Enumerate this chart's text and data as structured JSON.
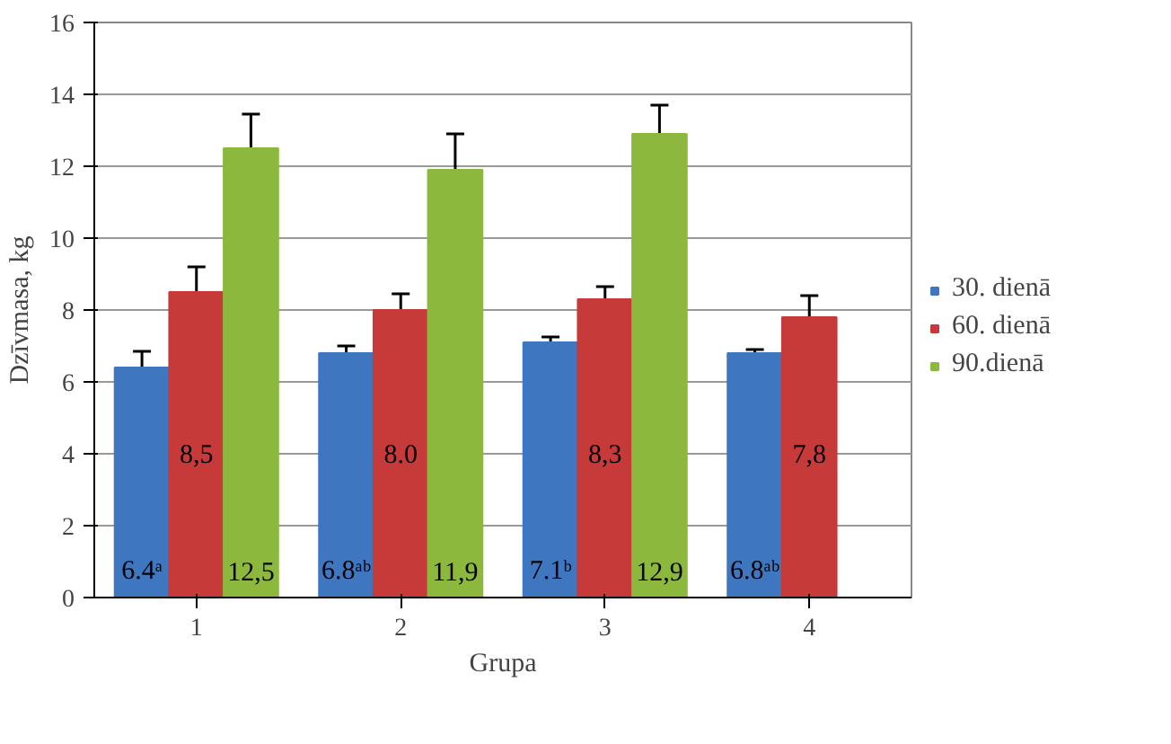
{
  "chart_data": {
    "type": "bar",
    "xlabel": "Grupa",
    "ylabel": "Dzīvmasa, kg",
    "categories": [
      "1",
      "2",
      "3",
      "4"
    ],
    "series": [
      {
        "name": "30. dienā",
        "color": "#3f76c0",
        "values": [
          6.4,
          6.8,
          7.1,
          6.8
        ],
        "errors": [
          0.45,
          0.2,
          0.15,
          0.1
        ],
        "value_labels": [
          "6.4ᵃ",
          "6.8ᵃᵇ",
          "7.1ᵇ",
          "6.8ᵃᵇ"
        ]
      },
      {
        "name": "60. dienā",
        "color": "#c63a3a",
        "values": [
          8.5,
          8.0,
          8.3,
          7.8
        ],
        "errors": [
          0.7,
          0.45,
          0.35,
          0.6
        ],
        "value_labels": [
          "8,5",
          "8.0",
          "8,3",
          "7,8"
        ]
      },
      {
        "name": "90.dienā",
        "color": "#8db83e",
        "values": [
          12.5,
          11.9,
          12.9,
          null
        ],
        "errors": [
          0.95,
          1.0,
          0.8,
          null
        ],
        "value_labels": [
          "12,5",
          "11,9",
          "12,9",
          null
        ]
      }
    ],
    "ylim": [
      0,
      16
    ],
    "yticks": [
      0,
      2,
      4,
      6,
      8,
      10,
      12,
      14,
      16
    ],
    "grid": "y",
    "legend": "right"
  }
}
